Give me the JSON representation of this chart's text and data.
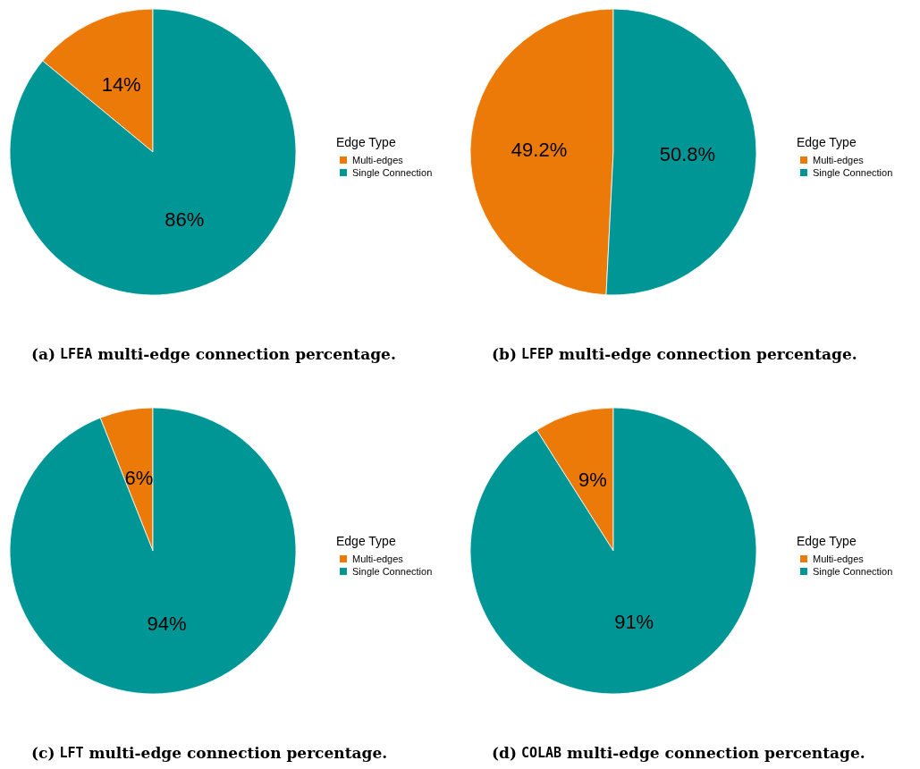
{
  "chart_data": [
    {
      "type": "pie",
      "title": "(a) LFEA multi-edge connection percentage.",
      "legend_title": "Edge Type",
      "legend": "right",
      "categories": [
        "Multi-edges",
        "Single Connection"
      ],
      "values": [
        14,
        86
      ],
      "value_labels": [
        "14%",
        "86%"
      ],
      "colors": [
        "#ec7a08",
        "#009696"
      ]
    },
    {
      "type": "pie",
      "title": "(b) LFEP multi-edge connection percentage.",
      "legend_title": "Edge Type",
      "legend": "right",
      "categories": [
        "Multi-edges",
        "Single Connection"
      ],
      "values": [
        49.2,
        50.8
      ],
      "value_labels": [
        "49.2%",
        "50.8%"
      ],
      "colors": [
        "#ec7a08",
        "#009696"
      ]
    },
    {
      "type": "pie",
      "title": "(c) LFT multi-edge connection percentage.",
      "legend_title": "Edge Type",
      "legend": "right",
      "categories": [
        "Multi-edges",
        "Single Connection"
      ],
      "values": [
        6,
        94
      ],
      "value_labels": [
        "6%",
        "94%"
      ],
      "colors": [
        "#ec7a08",
        "#009696"
      ]
    },
    {
      "type": "pie",
      "title": "(d) COLAB multi-edge connection percentage.",
      "legend_title": "Edge Type",
      "legend": "right",
      "categories": [
        "Multi-edges",
        "Single Connection"
      ],
      "values": [
        9,
        91
      ],
      "value_labels": [
        "9%",
        "91%"
      ],
      "colors": [
        "#ec7a08",
        "#009696"
      ]
    }
  ]
}
